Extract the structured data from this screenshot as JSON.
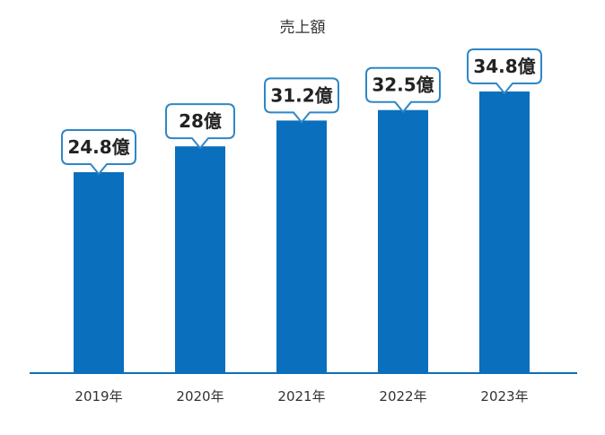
{
  "chart_data": {
    "type": "bar",
    "title": "売上額",
    "xlabel": "",
    "ylabel": "",
    "categories": [
      "2019年",
      "2020年",
      "2021年",
      "2022年",
      "2023年"
    ],
    "values": [
      24.8,
      28,
      31.2,
      32.5,
      34.8
    ],
    "data_labels": [
      "24.8億",
      "28億",
      "31.2億",
      "32.5億",
      "34.8億"
    ],
    "ylim": [
      0,
      40
    ],
    "grid": false,
    "legend": "none",
    "colors": {
      "bar": "#0a6fbd",
      "baseline": "#0a6fbd",
      "callout_border": "#2f86c6",
      "callout_fill": "#ffffff"
    }
  }
}
